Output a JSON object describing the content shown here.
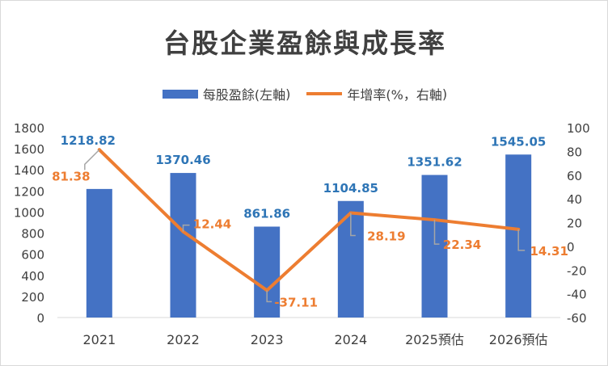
{
  "chart_data": {
    "type": "bar+line",
    "title": "台股企業盈餘與成長率",
    "categories": [
      "2021",
      "2022",
      "2023",
      "2024",
      "2025預估",
      "2026預估"
    ],
    "series": [
      {
        "name": "每股盈餘(左軸",
        "type": "bar",
        "axis": "left",
        "values": [
          1218.82,
          1370.46,
          861.86,
          1104.85,
          1351.62,
          1545.05
        ],
        "labels": [
          "1218.82",
          "1370.46",
          "861.86",
          "1104.85",
          "1351.62",
          "1545.05"
        ]
      },
      {
        "name": "年增率(%，右軸",
        "type": "line",
        "axis": "right",
        "values": [
          81.38,
          12.44,
          -37.11,
          28.19,
          22.34,
          14.31
        ],
        "labels": [
          "81.38",
          "12.44",
          "-37.11",
          "28.19",
          "22.34",
          "14.31"
        ]
      }
    ],
    "left_axis": {
      "min": 0,
      "max": 1800,
      "ticks": [
        "0",
        "200",
        "400",
        "600",
        "800",
        "1000",
        "1200",
        "1400",
        "1600",
        "1800"
      ]
    },
    "right_axis": {
      "min": -60,
      "max": 100,
      "ticks": [
        "-60",
        "-40",
        "-20",
        "0",
        "20",
        "40",
        "60",
        "80",
        "100"
      ]
    },
    "grid": false,
    "legend": "top-center",
    "colors": {
      "bar": "#4472c4",
      "line": "#ed7d31",
      "bar_label": "#2e75b6",
      "line_label": "#ed7d31",
      "axis_text": "#404040",
      "leader": "#a6a6a6"
    }
  }
}
